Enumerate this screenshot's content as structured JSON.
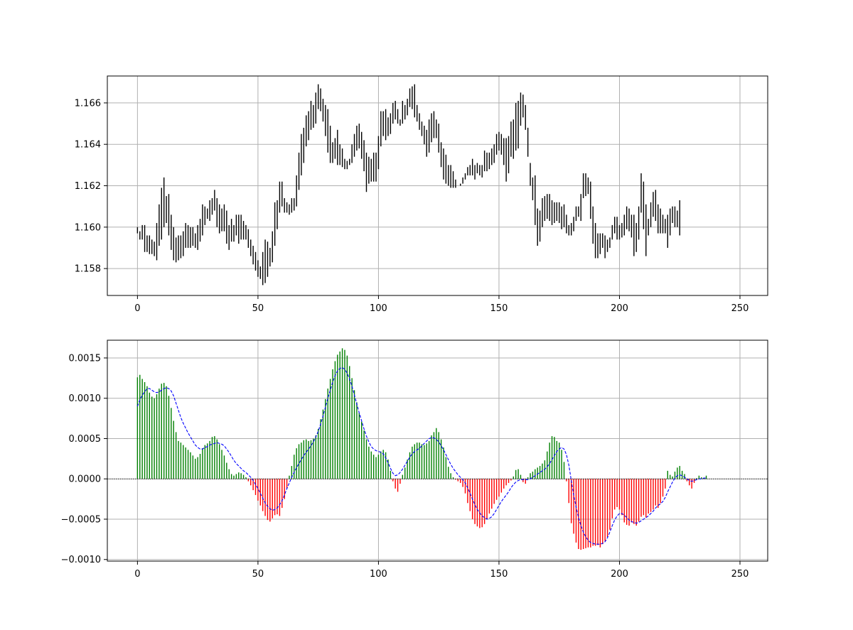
{
  "chart_data": [
    {
      "type": "ohlc",
      "title": "",
      "xlabel": "",
      "ylabel": "",
      "xlim": [
        -12.5,
        261.5
      ],
      "ylim": [
        1.1567,
        1.1673
      ],
      "xticks": [
        0,
        50,
        100,
        150,
        200,
        250
      ],
      "xtick_labels": [
        "0",
        "50",
        "100",
        "150",
        "200",
        "250"
      ],
      "yticks": [
        1.158,
        1.16,
        1.162,
        1.164,
        1.166
      ],
      "ytick_labels": [
        "1.158",
        "1.160",
        "1.162",
        "1.164",
        "1.166"
      ],
      "grid": true,
      "bar_color": "#000000",
      "x_start": 0,
      "highs": [
        1.16,
        1.1598,
        1.1601,
        1.1601,
        1.1596,
        1.1596,
        1.1594,
        1.1593,
        1.1602,
        1.1611,
        1.1619,
        1.1624,
        1.1615,
        1.1616,
        1.1606,
        1.16,
        1.1595,
        1.1596,
        1.1596,
        1.1598,
        1.1602,
        1.1601,
        1.16,
        1.16,
        1.1597,
        1.1601,
        1.1604,
        1.1611,
        1.161,
        1.1609,
        1.1613,
        1.1614,
        1.1618,
        1.1614,
        1.1611,
        1.1609,
        1.1611,
        1.1608,
        1.1601,
        1.1604,
        1.1601,
        1.1606,
        1.1606,
        1.1606,
        1.1603,
        1.1601,
        1.1599,
        1.1594,
        1.1591,
        1.1588,
        1.1584,
        1.1581,
        1.1588,
        1.1594,
        1.1593,
        1.159,
        1.1598,
        1.1612,
        1.1613,
        1.1622,
        1.1622,
        1.1614,
        1.1612,
        1.1611,
        1.1614,
        1.1614,
        1.1625,
        1.1636,
        1.1645,
        1.1648,
        1.1654,
        1.1656,
        1.1661,
        1.1659,
        1.1665,
        1.1669,
        1.1667,
        1.1662,
        1.1659,
        1.1657,
        1.1649,
        1.1641,
        1.1643,
        1.1647,
        1.164,
        1.1638,
        1.1633,
        1.1632,
        1.1633,
        1.164,
        1.1645,
        1.1649,
        1.165,
        1.1646,
        1.1642,
        1.1636,
        1.1634,
        1.1633,
        1.1636,
        1.1636,
        1.1644,
        1.1656,
        1.1656,
        1.1657,
        1.1653,
        1.1655,
        1.166,
        1.1661,
        1.1657,
        1.1652,
        1.1661,
        1.1659,
        1.1662,
        1.1667,
        1.1668,
        1.1669,
        1.1659,
        1.1655,
        1.1651,
        1.1649,
        1.1647,
        1.1652,
        1.1655,
        1.1656,
        1.1652,
        1.165,
        1.1641,
        1.1638,
        1.1635,
        1.163,
        1.163,
        1.1627,
        1.1623,
        1.1621,
        1.162,
        1.1624,
        1.1626,
        1.1629,
        1.163,
        1.1633,
        1.163,
        1.1631,
        1.163,
        1.163,
        1.1637,
        1.1636,
        1.1636,
        1.1638,
        1.164,
        1.1645,
        1.1646,
        1.1645,
        1.1643,
        1.1643,
        1.1644,
        1.1651,
        1.1652,
        1.166,
        1.1661,
        1.1665,
        1.1664,
        1.1659,
        1.1648,
        1.1631,
        1.1624,
        1.1625,
        1.1609,
        1.1608,
        1.1614,
        1.1615,
        1.1616,
        1.1616,
        1.1613,
        1.1612,
        1.1612,
        1.1612,
        1.161,
        1.1611,
        1.1606,
        1.1601,
        1.1602,
        1.1605,
        1.161,
        1.161,
        1.1616,
        1.1626,
        1.1626,
        1.1624,
        1.1622,
        1.161,
        1.1602,
        1.1597,
        1.1597,
        1.1597,
        1.1596,
        1.1594,
        1.1595,
        1.1601,
        1.1605,
        1.1605,
        1.1601,
        1.1602,
        1.1606,
        1.161,
        1.1609,
        1.1606,
        1.1606,
        1.1602,
        1.161,
        1.1626,
        1.1622,
        1.1611,
        1.1604,
        1.1612,
        1.1617,
        1.1618,
        1.1611,
        1.1609,
        1.1606,
        1.1604,
        1.1606,
        1.1609,
        1.161,
        1.161,
        1.1608,
        1.1613
      ],
      "lows": [
        1.1597,
        1.1594,
        1.1594,
        1.1588,
        1.1588,
        1.1587,
        1.1587,
        1.1586,
        1.1584,
        1.1591,
        1.1594,
        1.16,
        1.1602,
        1.1596,
        1.1589,
        1.1584,
        1.1583,
        1.1584,
        1.1585,
        1.1586,
        1.159,
        1.159,
        1.159,
        1.1591,
        1.159,
        1.1589,
        1.1593,
        1.1596,
        1.1601,
        1.1604,
        1.1603,
        1.1606,
        1.1608,
        1.16,
        1.1597,
        1.1598,
        1.1598,
        1.1592,
        1.1589,
        1.1593,
        1.1593,
        1.1596,
        1.1592,
        1.1594,
        1.1594,
        1.1594,
        1.159,
        1.1586,
        1.1582,
        1.1579,
        1.1576,
        1.1575,
        1.1572,
        1.1573,
        1.1576,
        1.1581,
        1.1583,
        1.1591,
        1.1599,
        1.1607,
        1.161,
        1.1607,
        1.1607,
        1.1606,
        1.1607,
        1.1608,
        1.161,
        1.1618,
        1.1625,
        1.1631,
        1.1639,
        1.1642,
        1.1647,
        1.1648,
        1.165,
        1.1657,
        1.1656,
        1.1651,
        1.1644,
        1.1636,
        1.1631,
        1.1631,
        1.1633,
        1.163,
        1.163,
        1.1629,
        1.1628,
        1.1628,
        1.163,
        1.1631,
        1.1634,
        1.1637,
        1.1638,
        1.1633,
        1.1627,
        1.1617,
        1.1621,
        1.1622,
        1.1622,
        1.1622,
        1.1628,
        1.1639,
        1.1644,
        1.1642,
        1.1644,
        1.1645,
        1.165,
        1.1652,
        1.165,
        1.1649,
        1.165,
        1.1652,
        1.1654,
        1.1658,
        1.1657,
        1.1653,
        1.1651,
        1.1647,
        1.1644,
        1.164,
        1.1634,
        1.1636,
        1.1641,
        1.1643,
        1.1643,
        1.1636,
        1.1629,
        1.1623,
        1.1621,
        1.162,
        1.1619,
        1.1619,
        1.1619,
        1.1621,
        1.1621,
        1.1621,
        1.1623,
        1.1625,
        1.1625,
        1.1625,
        1.1623,
        1.1626,
        1.1625,
        1.1624,
        1.1627,
        1.1627,
        1.1628,
        1.163,
        1.1631,
        1.1635,
        1.1637,
        1.1635,
        1.163,
        1.1622,
        1.1626,
        1.1634,
        1.1633,
        1.1637,
        1.1638,
        1.1649,
        1.1653,
        1.1647,
        1.1634,
        1.162,
        1.1613,
        1.1601,
        1.1591,
        1.1593,
        1.16,
        1.1603,
        1.1604,
        1.1603,
        1.1601,
        1.1602,
        1.1603,
        1.1602,
        1.1599,
        1.16,
        1.1597,
        1.1596,
        1.1596,
        1.1598,
        1.1603,
        1.1605,
        1.1603,
        1.1614,
        1.1615,
        1.1616,
        1.1604,
        1.1592,
        1.1585,
        1.1585,
        1.1587,
        1.159,
        1.1585,
        1.1588,
        1.159,
        1.1594,
        1.1597,
        1.1594,
        1.1594,
        1.1595,
        1.1596,
        1.1599,
        1.1598,
        1.1595,
        1.1586,
        1.1588,
        1.1594,
        1.1607,
        1.1599,
        1.1586,
        1.1596,
        1.16,
        1.1605,
        1.1603,
        1.1597,
        1.1597,
        1.1597,
        1.1597,
        1.159,
        1.1596,
        1.1602,
        1.16,
        1.16,
        1.1596
      ]
    },
    {
      "type": "bar",
      "title": "",
      "xlabel": "",
      "ylabel": "",
      "xlim": [
        -12.5,
        261.5
      ],
      "ylim": [
        -0.00102,
        0.00172
      ],
      "xticks": [
        0,
        50,
        100,
        150,
        200,
        250
      ],
      "xtick_labels": [
        "0",
        "50",
        "100",
        "150",
        "200",
        "250"
      ],
      "yticks": [
        -0.001,
        -0.0005,
        0.0,
        0.0005,
        0.001,
        0.0015
      ],
      "ytick_labels": [
        "−0.0010",
        "−0.0005",
        "0.0000",
        "0.0005",
        "0.0010",
        "0.0015"
      ],
      "grid": true,
      "positive_color": "#008000",
      "negative_color": "#ff0000",
      "signal_color": "#0000ff",
      "zero_line_color": "#000000",
      "x_start": 0,
      "values": [
        0.00126,
        0.00129,
        0.00124,
        0.0012,
        0.00115,
        0.00107,
        0.00102,
        0.001,
        0.00105,
        0.00112,
        0.00118,
        0.00119,
        0.00115,
        0.00103,
        0.00088,
        0.00072,
        0.00058,
        0.00047,
        0.00045,
        0.00042,
        0.00039,
        0.00036,
        0.00033,
        0.00029,
        0.00025,
        0.00027,
        0.00031,
        0.00038,
        0.00042,
        0.00044,
        0.00047,
        0.00052,
        0.00053,
        0.00049,
        0.00043,
        0.00036,
        0.00029,
        0.0002,
        0.00012,
        6e-05,
        4e-05,
        6e-05,
        8e-05,
        7e-05,
        5e-05,
        2e-05,
        -3e-05,
        -8e-05,
        -0.00014,
        -0.0002,
        -0.00027,
        -0.00033,
        -0.0004,
        -0.00046,
        -0.00051,
        -0.00053,
        -0.00049,
        -0.00045,
        -0.00044,
        -0.00046,
        -0.00036,
        -0.00025,
        -0.00012,
        4e-05,
        0.00016,
        0.0003,
        0.00038,
        0.00043,
        0.00045,
        0.00048,
        0.00049,
        0.00047,
        0.00048,
        0.0005,
        0.00054,
        0.00062,
        0.00074,
        0.00086,
        0.00099,
        0.00112,
        0.00124,
        0.00136,
        0.00146,
        0.00154,
        0.00158,
        0.00162,
        0.0016,
        0.00153,
        0.0014,
        0.00125,
        0.0011,
        0.00095,
        0.00082,
        0.00071,
        0.0006,
        0.00049,
        0.0004,
        0.00034,
        0.0003,
        0.00027,
        0.0003,
        0.00034,
        0.00036,
        0.00033,
        0.00024,
        0.0001,
        -3e-05,
        -0.00012,
        -0.00016,
        -6e-05,
        5e-05,
        0.00014,
        0.00024,
        0.00033,
        0.0004,
        0.00043,
        0.00045,
        0.00045,
        0.00043,
        0.00042,
        0.00044,
        0.00047,
        0.00054,
        0.00058,
        0.00063,
        0.00058,
        0.00049,
        0.00039,
        0.00027,
        0.00015,
        7e-05,
        2e-05,
        -1e-05,
        -3e-05,
        -5e-05,
        -0.0001,
        -0.00018,
        -0.0003,
        -0.0004,
        -0.0005,
        -0.00056,
        -0.00059,
        -0.00061,
        -0.0006,
        -0.00056,
        -0.0005,
        -0.00043,
        -0.00037,
        -0.00031,
        -0.00026,
        -0.00022,
        -0.00017,
        -0.00012,
        -8e-05,
        -5e-05,
        -2e-05,
        3e-05,
        0.00011,
        0.00012,
        5e-05,
        -4e-05,
        -6e-05,
        2e-05,
        7e-05,
        9e-05,
        0.00012,
        0.00014,
        0.00016,
        0.00019,
        0.00023,
        0.00034,
        0.00045,
        0.00053,
        0.00052,
        0.00047,
        0.00045,
        0.00036,
        0.00021,
        -3e-05,
        -0.0003,
        -0.00055,
        -0.00068,
        -0.00079,
        -0.00087,
        -0.00088,
        -0.00087,
        -0.00086,
        -0.00085,
        -0.00085,
        -0.00083,
        -0.00083,
        -0.00082,
        -0.00085,
        -0.00081,
        -0.00077,
        -0.00072,
        -0.00063,
        -0.00049,
        -0.00038,
        -0.00035,
        -0.00038,
        -0.00045,
        -0.00054,
        -0.00057,
        -0.00058,
        -0.00054,
        -0.00056,
        -0.00058,
        -0.00053,
        -0.00047,
        -0.00045,
        -0.00048,
        -0.00043,
        -0.00041,
        -0.00038,
        -0.00033,
        -0.00036,
        -0.0003,
        -0.00022,
        -0.00012,
        0.0001,
        5e-05,
        3e-05,
        9e-05,
        0.00014,
        0.00016,
        0.0001,
        6e-05,
        -3e-05,
        -8e-05,
        -0.00012,
        -5e-05,
        1e-05,
        4e-05,
        2e-05,
        1e-05,
        4e-05
      ],
      "signal": [
        0.0009,
        0.00098,
        0.00104,
        0.00108,
        0.00112,
        0.00112,
        0.0011,
        0.00108,
        0.00107,
        0.00108,
        0.0011,
        0.00112,
        0.00113,
        0.00112,
        0.00109,
        0.00103,
        0.00094,
        0.00085,
        0.00076,
        0.00069,
        0.00063,
        0.00057,
        0.00052,
        0.00047,
        0.00042,
        0.00039,
        0.00037,
        0.00037,
        0.00039,
        0.0004,
        0.00042,
        0.00043,
        0.00044,
        0.00045,
        0.00044,
        0.00043,
        0.00041,
        0.00037,
        0.00033,
        0.00028,
        0.00023,
        0.00019,
        0.00016,
        0.00013,
        0.0001,
        8e-05,
        5e-05,
        2e-05,
        -2e-05,
        -7e-05,
        -0.00012,
        -0.00018,
        -0.00024,
        -0.0003,
        -0.00034,
        -0.00037,
        -0.00039,
        -0.00038,
        -0.00036,
        -0.00032,
        -0.00027,
        -0.0002,
        -0.00012,
        -5e-05,
        2e-05,
        8e-05,
        0.00014,
        0.00019,
        0.00024,
        0.00029,
        0.00033,
        0.00037,
        0.00041,
        0.00046,
        0.00052,
        0.00059,
        0.00068,
        0.00078,
        0.00089,
        0.001,
        0.0011,
        0.0012,
        0.00128,
        0.00134,
        0.00137,
        0.00138,
        0.00136,
        0.00131,
        0.00124,
        0.00115,
        0.00104,
        0.00093,
        0.00082,
        0.00072,
        0.00062,
        0.00053,
        0.00046,
        0.0004,
        0.00037,
        0.00035,
        0.00034,
        0.00033,
        0.00031,
        0.00026,
        0.0002,
        0.00013,
        7e-05,
        4e-05,
        5e-05,
        8e-05,
        0.00012,
        0.00017,
        0.00022,
        0.00027,
        0.00031,
        0.00034,
        0.00036,
        0.00038,
        0.00041,
        0.00044,
        0.00047,
        0.0005,
        0.00051,
        0.00051,
        0.00049,
        0.00046,
        0.00041,
        0.00036,
        0.0003,
        0.00024,
        0.00018,
        0.00013,
        9e-05,
        5e-05,
        2e-05,
        -1e-05,
        -5e-05,
        -0.00011,
        -0.00018,
        -0.00025,
        -0.00032,
        -0.00038,
        -0.00042,
        -0.00046,
        -0.00048,
        -0.0005,
        -0.00049,
        -0.00047,
        -0.00043,
        -0.00038,
        -0.00033,
        -0.00028,
        -0.00024,
        -0.0002,
        -0.00016,
        -0.00011,
        -7e-05,
        -4e-05,
        -2e-05,
        -1e-05,
        -1e-05,
        -1e-05,
        -1e-05,
        0.0,
        2e-05,
        4e-05,
        6e-05,
        8e-05,
        0.0001,
        0.00012,
        0.00015,
        0.00019,
        0.00024,
        0.00029,
        0.00034,
        0.00037,
        0.00039,
        0.00037,
        0.0003,
        0.00017,
        -2e-05,
        -0.0002,
        -0.00035,
        -0.00048,
        -0.00058,
        -0.00066,
        -0.00072,
        -0.00076,
        -0.00079,
        -0.0008,
        -0.00081,
        -0.00081,
        -0.00081,
        -0.0008,
        -0.00078,
        -0.00073,
        -0.00066,
        -0.00058,
        -0.00051,
        -0.00046,
        -0.00043,
        -0.00043,
        -0.00045,
        -0.00048,
        -0.00051,
        -0.00053,
        -0.00054,
        -0.00055,
        -0.00054,
        -0.00052,
        -0.0005,
        -0.00048,
        -0.00046,
        -0.00043,
        -0.0004,
        -0.00036,
        -0.00033,
        -0.00031,
        -0.00028,
        -0.00023,
        -0.00016,
        -0.0001,
        -4e-05,
        1e-05,
        4e-05,
        5e-05,
        4e-05,
        2e-05,
        0.0,
        -2e-05,
        -3e-05,
        -2e-05,
        -1e-05,
        0.0,
        0.0,
        1e-05,
        1e-05
      ]
    }
  ]
}
